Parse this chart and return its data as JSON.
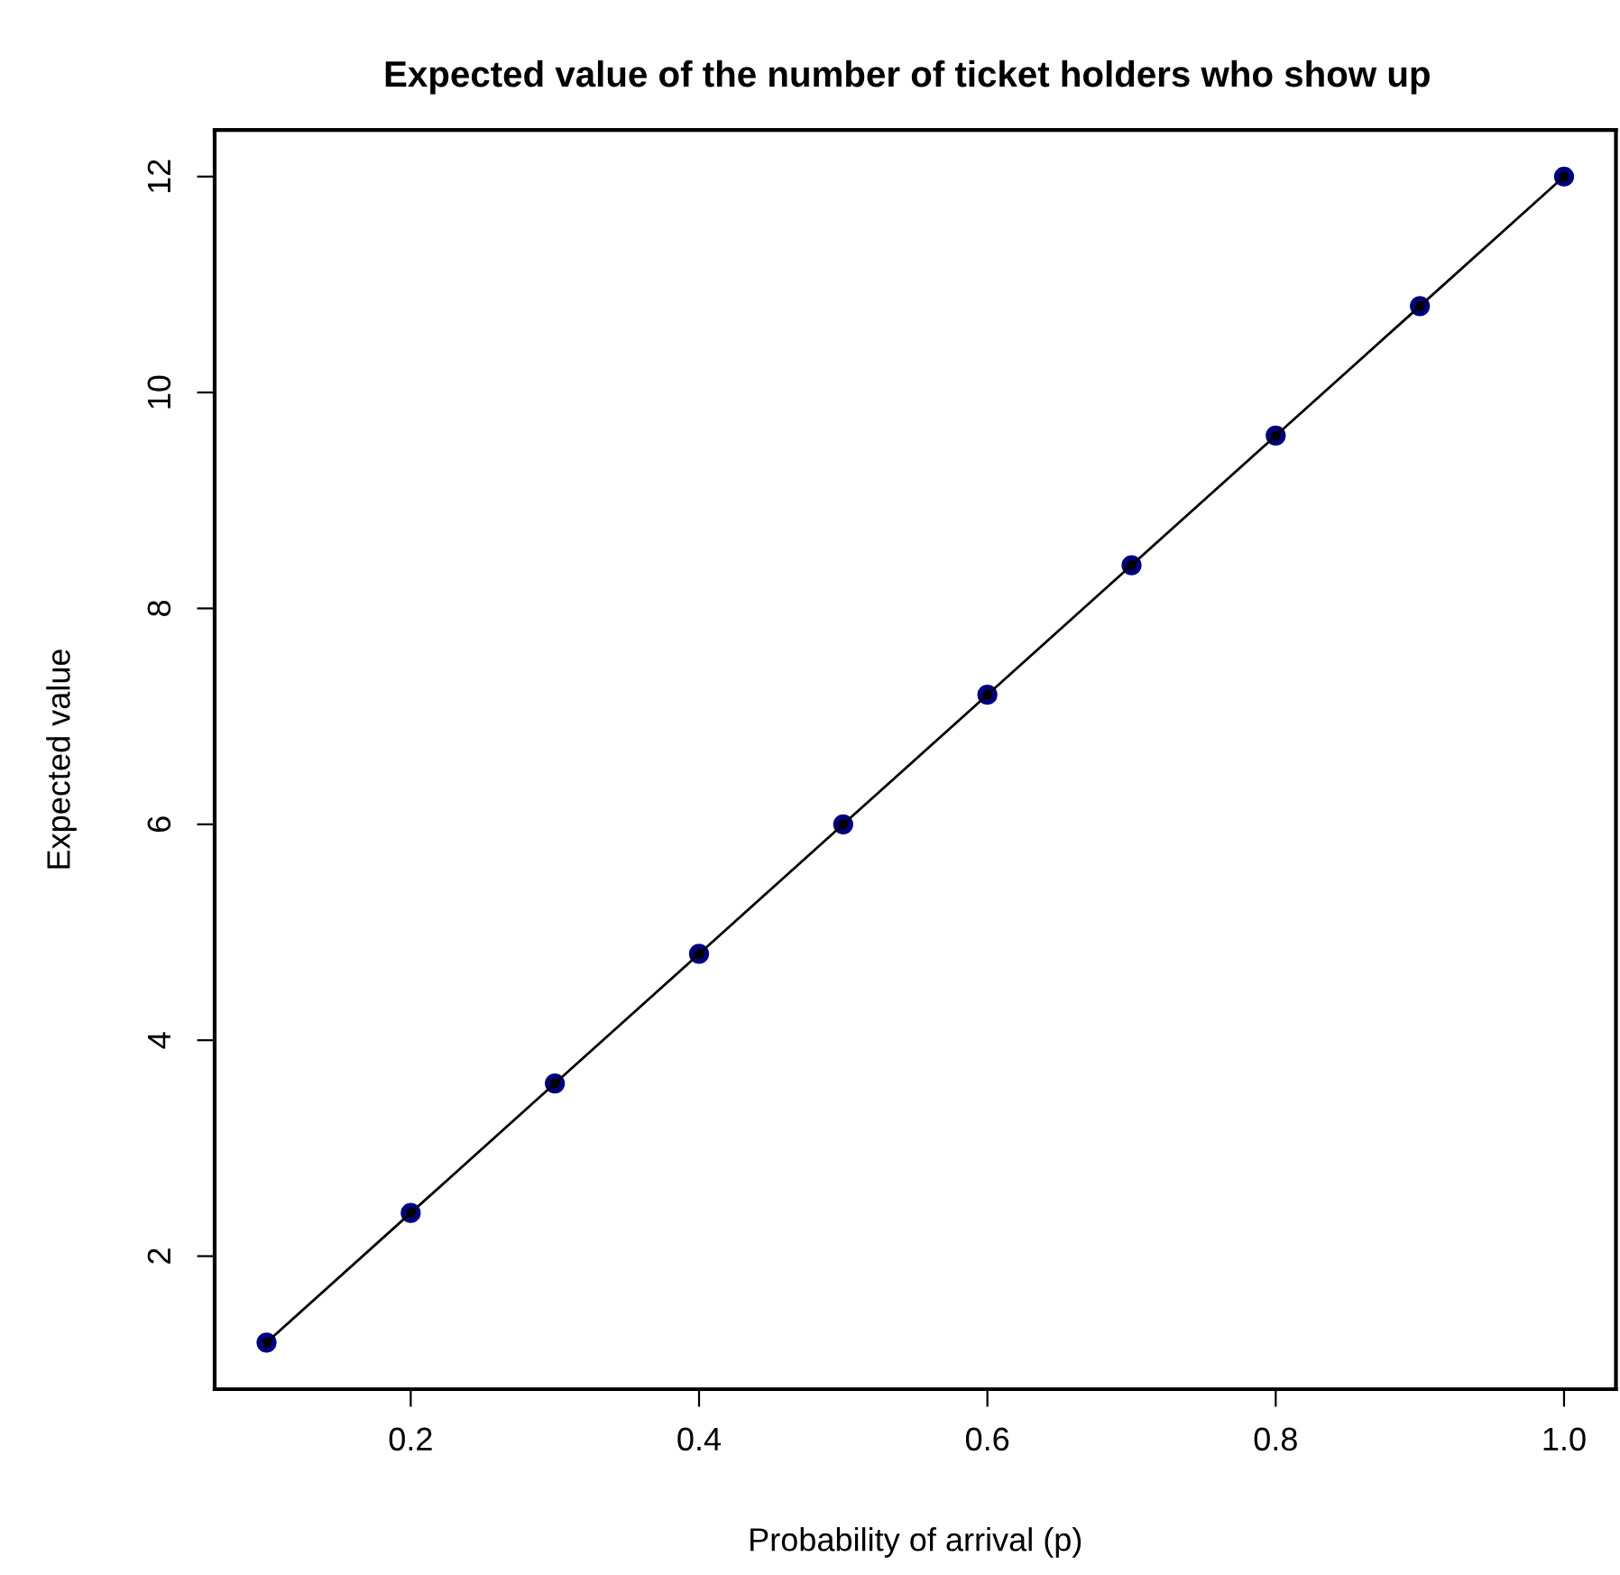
{
  "chart_data": {
    "type": "line",
    "title": "Expected value of the number of ticket holders who show up",
    "xlabel": "Probability of arrival (p)",
    "ylabel": "Expected value",
    "x": [
      0.1,
      0.2,
      0.3,
      0.4,
      0.5,
      0.6,
      0.7,
      0.8,
      0.9,
      1.0
    ],
    "series": [
      {
        "type": "scatter",
        "color": "#000080",
        "values": [
          1.2,
          2.4,
          3.6,
          4.8,
          6.0,
          7.2,
          8.4,
          9.6,
          10.8,
          12.0
        ]
      },
      {
        "color": "#000000",
        "values": [
          1.2,
          2.4,
          3.6,
          4.8,
          6.0,
          7.2,
          8.4,
          9.6,
          10.8,
          12.0
        ]
      }
    ],
    "xlim": [
      0.064,
      1.036
    ],
    "ylim": [
      0.768,
      12.432
    ],
    "xticks": [
      {
        "value": 0.2,
        "label": "0.2"
      },
      {
        "value": 0.4,
        "label": "0.4"
      },
      {
        "value": 0.6,
        "label": "0.6"
      },
      {
        "value": 0.8,
        "label": "0.8"
      },
      {
        "value": 1.0,
        "label": "1.0"
      }
    ],
    "yticks": [
      2,
      4,
      6,
      8,
      10,
      12
    ],
    "marker": "circle",
    "line_style": "solid",
    "grid": false,
    "legend": false
  }
}
